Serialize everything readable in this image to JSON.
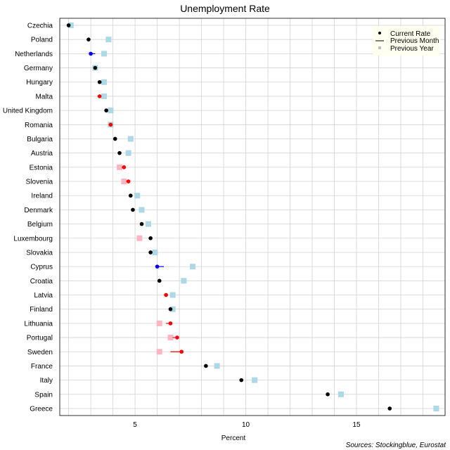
{
  "chart_data": {
    "type": "scatter",
    "title": "Unemployment Rate",
    "xlabel": "Percent",
    "ylabel": "",
    "xlim": [
      1.6,
      19.0
    ],
    "xticks": [
      5,
      10,
      15
    ],
    "grid": true,
    "legend_position": "top-right",
    "legend": {
      "current": "Current Rate",
      "previous_month": "Previous Month",
      "previous_year": "Previous Year"
    },
    "source": "Sources: Stockingblue, Eurostat",
    "colors": {
      "unchanged": "#000000",
      "improved": "#0000ff",
      "worsened": "#ff0000",
      "prev_year_higher": "#add8e6",
      "prev_year_lower": "#ffb6c1",
      "grid": "#d3d3d3"
    },
    "categories": [
      "Czechia",
      "Poland",
      "Netherlands",
      "Germany",
      "Hungary",
      "Malta",
      "United Kingdom",
      "Romania",
      "Bulgaria",
      "Austria",
      "Estonia",
      "Slovenia",
      "Ireland",
      "Denmark",
      "Belgium",
      "Luxembourg",
      "Slovakia",
      "Cyprus",
      "Croatia",
      "Latvia",
      "Finland",
      "Lithuania",
      "Portugal",
      "Sweden",
      "France",
      "Italy",
      "Spain",
      "Greece"
    ],
    "series": [
      {
        "name": "Current Rate",
        "values": [
          2.0,
          2.9,
          3.0,
          3.2,
          3.4,
          3.4,
          3.7,
          3.9,
          4.1,
          4.3,
          4.5,
          4.7,
          4.8,
          4.9,
          5.3,
          5.7,
          5.7,
          6.0,
          6.1,
          6.4,
          6.6,
          6.6,
          6.9,
          7.1,
          8.2,
          9.8,
          13.7,
          16.5
        ]
      },
      {
        "name": "Previous Month",
        "values": [
          2.0,
          2.9,
          3.2,
          3.2,
          3.4,
          3.3,
          3.7,
          3.8,
          4.1,
          4.3,
          4.4,
          4.6,
          4.8,
          4.9,
          5.3,
          5.7,
          5.7,
          6.3,
          6.1,
          6.3,
          6.6,
          6.4,
          6.7,
          6.6,
          8.2,
          9.8,
          13.7,
          16.5
        ]
      },
      {
        "name": "Previous Year",
        "values": [
          2.1,
          3.8,
          3.6,
          3.2,
          3.6,
          3.6,
          3.9,
          3.9,
          4.8,
          4.7,
          4.3,
          4.5,
          5.1,
          5.3,
          5.6,
          5.2,
          5.9,
          7.6,
          7.2,
          6.7,
          6.7,
          6.1,
          6.6,
          6.1,
          8.7,
          10.4,
          14.3,
          18.6
        ]
      }
    ]
  }
}
